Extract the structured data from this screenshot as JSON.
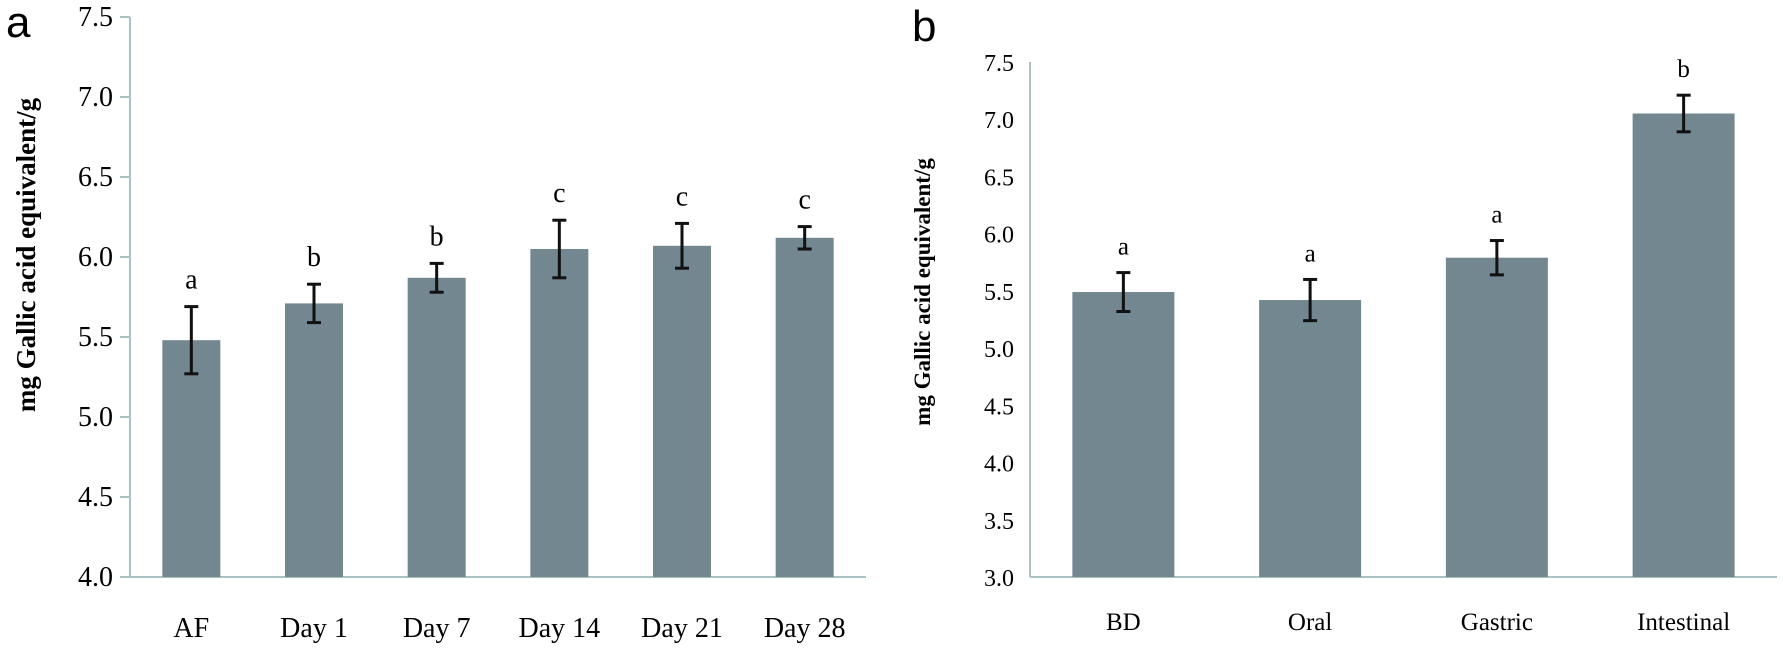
{
  "figure": {
    "bar_color": "#738790",
    "axis_color": "#a9c3c3",
    "errorbar_color": "#111111"
  },
  "chart_data": [
    {
      "panel": "a",
      "type": "bar",
      "categories": [
        "AF",
        "Day 1",
        "Day 7",
        "Day 14",
        "Day 21",
        "Day 28"
      ],
      "values": [
        5.48,
        5.71,
        5.87,
        6.05,
        6.07,
        6.12
      ],
      "errors": [
        0.21,
        0.12,
        0.09,
        0.18,
        0.14,
        0.07
      ],
      "significance": [
        "a",
        "b",
        "b",
        "c",
        "c",
        "c"
      ],
      "ylabel": "mg Gallic acid equivalent/g",
      "ylim": [
        4.0,
        7.5
      ],
      "yticks": [
        "4.0",
        "4.5",
        "5.0",
        "5.5",
        "6.0",
        "6.5",
        "7.0",
        "7.5"
      ],
      "grid": false,
      "legend": "none"
    },
    {
      "panel": "b",
      "type": "bar",
      "categories": [
        "BD",
        "Oral",
        "Gastric",
        "Intestinal"
      ],
      "values": [
        5.49,
        5.42,
        5.79,
        7.05
      ],
      "errors": [
        0.17,
        0.18,
        0.15,
        0.16
      ],
      "significance": [
        "a",
        "a",
        "a",
        "b"
      ],
      "ylabel": "mg Gallic acid equivalent/g",
      "ylim": [
        3.0,
        7.5
      ],
      "yticks": [
        "3.0",
        "3.5",
        "4.0",
        "4.5",
        "5.0",
        "5.5",
        "6.0",
        "6.5",
        "7.0",
        "7.5"
      ],
      "grid": false,
      "legend": "none"
    }
  ]
}
